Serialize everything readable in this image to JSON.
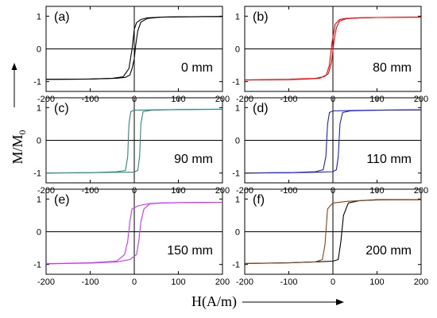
{
  "figure": {
    "xlabel": "H(A/m)",
    "ylabel": "M/M",
    "ylabel_subscript": "0"
  },
  "chart_data": [
    {
      "type": "line",
      "label": "(a)",
      "annotation": "0 mm",
      "xlim": [
        -200,
        200
      ],
      "ylim": [
        -1.3,
        1.3
      ],
      "xticks": [
        -200,
        -100,
        0,
        100,
        200
      ],
      "yticks": [
        -1,
        0,
        1
      ],
      "grid": false,
      "series": [
        {
          "color": "#000000",
          "x": [
            -200,
            -100,
            -40,
            -20,
            -10,
            -5,
            0,
            3,
            8,
            15,
            30,
            60,
            100,
            200
          ],
          "y": [
            -0.93,
            -0.92,
            -0.9,
            -0.87,
            -0.8,
            -0.6,
            -0.3,
            0.1,
            0.55,
            0.82,
            0.93,
            0.97,
            0.98,
            0.99
          ]
        },
        {
          "color": "#000000",
          "x": [
            200,
            100,
            60,
            30,
            15,
            5,
            0,
            -5,
            -12,
            -25,
            -50,
            -100,
            -200
          ],
          "y": [
            0.99,
            0.98,
            0.97,
            0.95,
            0.9,
            0.8,
            0.6,
            0.0,
            -0.6,
            -0.85,
            -0.9,
            -0.92,
            -0.93
          ]
        }
      ]
    },
    {
      "type": "line",
      "label": "(b)",
      "annotation": "80 mm",
      "xlim": [
        -200,
        200
      ],
      "ylim": [
        -1.3,
        1.3
      ],
      "xticks": [
        -200,
        -100,
        0,
        100,
        200
      ],
      "yticks": [
        -1,
        0,
        1
      ],
      "grid": false,
      "series": [
        {
          "color": "#ff0000",
          "x": [
            -200,
            -100,
            -40,
            -20,
            -10,
            -3,
            3,
            8,
            15,
            30,
            60,
            100,
            200
          ],
          "y": [
            -0.95,
            -0.93,
            -0.9,
            -0.85,
            -0.75,
            -0.4,
            0.3,
            0.65,
            0.85,
            0.92,
            0.95,
            0.96,
            0.97
          ]
        },
        {
          "color": "#ff0000",
          "x": [
            200,
            100,
            60,
            30,
            15,
            5,
            -2,
            -8,
            -15,
            -30,
            -60,
            -100,
            -200
          ],
          "y": [
            0.97,
            0.96,
            0.95,
            0.93,
            0.9,
            0.75,
            0.2,
            -0.5,
            -0.8,
            -0.9,
            -0.92,
            -0.94,
            -0.95
          ]
        }
      ]
    },
    {
      "type": "line",
      "label": "(c)",
      "annotation": "90 mm",
      "xlim": [
        -200,
        200
      ],
      "ylim": [
        -1.3,
        1.3
      ],
      "xticks": [
        -200,
        -100,
        0,
        100,
        200
      ],
      "yticks": [
        -1,
        0,
        1
      ],
      "grid": false,
      "series": [
        {
          "color": "#2a8b7a",
          "x": [
            -200,
            -100,
            -50,
            0,
            8,
            12,
            15,
            20,
            40,
            100,
            200
          ],
          "y": [
            -1.0,
            -0.99,
            -0.98,
            -0.97,
            -0.92,
            -0.5,
            0.5,
            0.88,
            0.92,
            0.94,
            0.95
          ]
        },
        {
          "color": "#2a8b7a",
          "x": [
            200,
            100,
            40,
            0,
            -8,
            -12,
            -15,
            -20,
            -40,
            -100,
            -200
          ],
          "y": [
            0.95,
            0.94,
            0.93,
            0.92,
            0.88,
            0.5,
            -0.5,
            -0.92,
            -0.96,
            -0.99,
            -1.0
          ]
        }
      ]
    },
    {
      "type": "line",
      "label": "(d)",
      "annotation": "110 mm",
      "xlim": [
        -200,
        200
      ],
      "ylim": [
        -1.3,
        1.3
      ],
      "xticks": [
        -200,
        -100,
        0,
        100,
        200
      ],
      "yticks": [
        -1,
        0,
        1
      ],
      "grid": false,
      "series": [
        {
          "color": "#1f1fcc",
          "x": [
            -200,
            -100,
            -50,
            0,
            8,
            12,
            16,
            22,
            40,
            100,
            200
          ],
          "y": [
            -1.0,
            -0.99,
            -0.98,
            -0.96,
            -0.9,
            -0.5,
            0.5,
            0.85,
            0.9,
            0.92,
            0.93
          ]
        },
        {
          "color": "#1f1fcc",
          "x": [
            200,
            100,
            40,
            0,
            -8,
            -12,
            -16,
            -22,
            -40,
            -100,
            -200
          ],
          "y": [
            0.93,
            0.92,
            0.91,
            0.9,
            0.85,
            0.5,
            -0.5,
            -0.9,
            -0.96,
            -0.99,
            -1.0
          ]
        }
      ]
    },
    {
      "type": "line",
      "label": "(e)",
      "annotation": "150 mm",
      "xlim": [
        -200,
        200
      ],
      "ylim": [
        -1.3,
        1.3
      ],
      "xticks": [
        -200,
        -100,
        0,
        100,
        200
      ],
      "yticks": [
        -1,
        0,
        1
      ],
      "grid": false,
      "series": [
        {
          "color": "#cc33ff",
          "x": [
            -200,
            -100,
            -40,
            -10,
            5,
            10,
            15,
            22,
            35,
            60,
            100,
            200
          ],
          "y": [
            -0.98,
            -0.96,
            -0.92,
            -0.85,
            -0.7,
            -0.3,
            0.3,
            0.7,
            0.85,
            0.88,
            0.89,
            0.9
          ]
        },
        {
          "color": "#cc33ff",
          "x": [
            200,
            100,
            60,
            35,
            10,
            -5,
            -10,
            -15,
            -22,
            -40,
            -100,
            -200
          ],
          "y": [
            0.9,
            0.89,
            0.88,
            0.86,
            0.8,
            0.7,
            0.3,
            -0.3,
            -0.7,
            -0.9,
            -0.95,
            -0.98
          ]
        }
      ]
    },
    {
      "type": "line",
      "label": "(f)",
      "annotation": "200 mm",
      "xlim": [
        -200,
        200
      ],
      "ylim": [
        -1.3,
        1.3
      ],
      "xticks": [
        -200,
        -100,
        0,
        100,
        200
      ],
      "yticks": [
        -1,
        0,
        1
      ],
      "grid": false,
      "series": [
        {
          "color": "#000000",
          "x": [
            -200,
            -100,
            -40,
            0,
            12,
            18,
            24,
            35,
            60,
            100,
            200
          ],
          "y": [
            -0.97,
            -0.95,
            -0.92,
            -0.9,
            -0.85,
            -0.3,
            0.5,
            0.88,
            0.95,
            0.98,
            0.98
          ]
        },
        {
          "color": "#8b4513",
          "x": [
            200,
            100,
            60,
            35,
            0,
            -12,
            -18,
            -24,
            -40,
            -100,
            -200
          ],
          "y": [
            0.98,
            0.97,
            0.95,
            0.93,
            0.88,
            0.7,
            -0.4,
            -0.85,
            -0.92,
            -0.95,
            -0.97
          ]
        }
      ]
    }
  ]
}
